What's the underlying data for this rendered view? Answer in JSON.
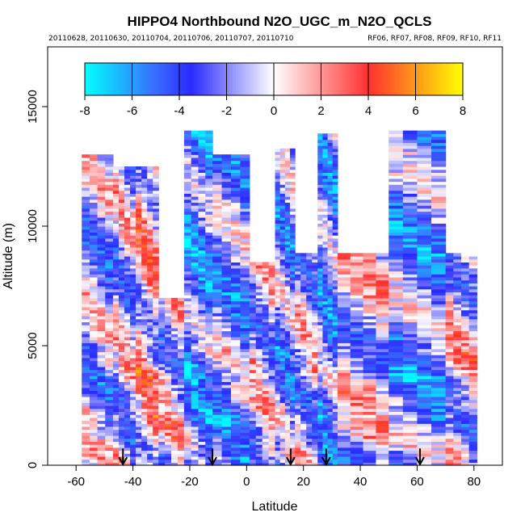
{
  "chart_data": {
    "type": "heatmap",
    "title": "HIPPO4 Northbound N2O_UGC_m_N2O_QCLS",
    "subtitle_left": "20110628, 20110630, 20110704, 20110706, 20110707, 20110710",
    "subtitle_right": "RF06, RF07, RF08, RF09, RF10, RF11",
    "xlabel": "Latitude",
    "ylabel": "Altitude (m)",
    "xlim": [
      -70,
      90
    ],
    "ylim": [
      0,
      17500
    ],
    "x_ticks": [
      -60,
      -40,
      -20,
      0,
      20,
      40,
      60,
      80
    ],
    "y_ticks": [
      0,
      5000,
      10000,
      15000
    ],
    "colorbar": {
      "min": -8,
      "max": 8,
      "ticks": [
        -8,
        -6,
        -4,
        -2,
        0,
        2,
        4,
        6,
        8
      ],
      "colors": [
        "#00ffff",
        "#3a6cff",
        "#2a2aff",
        "#ffffff",
        "#ff3030",
        "#ffff00"
      ],
      "placement": "top-inside"
    },
    "profile_latitudes": [
      -43.5,
      -12,
      15.5,
      28,
      61
    ],
    "columns": [
      {
        "lat0": -58,
        "lat1": -47,
        "alt_top": 13000,
        "mean": -1.5
      },
      {
        "lat0": -47,
        "lat1": -39,
        "alt_top": 12500,
        "mean": -1.0
      },
      {
        "lat0": -39,
        "lat1": -31,
        "alt_top": 12500,
        "mean": 0.8
      },
      {
        "lat0": -31,
        "lat1": -22,
        "alt_top": 7000,
        "mean": -0.5
      },
      {
        "lat0": -22,
        "lat1": -12,
        "alt_top": 13900,
        "mean": -3.5
      },
      {
        "lat0": -12,
        "lat1": 1,
        "alt_top": 12900,
        "mean": -2.5
      },
      {
        "lat0": 1,
        "lat1": 10,
        "alt_top": 8500,
        "mean": -1.0
      },
      {
        "lat0": 10,
        "lat1": 17,
        "alt_top": 13200,
        "mean": -2.5
      },
      {
        "lat0": 17,
        "lat1": 25,
        "alt_top": 8800,
        "mean": -1.0
      },
      {
        "lat0": 25,
        "lat1": 32,
        "alt_top": 13800,
        "mean": -3.0
      },
      {
        "lat0": 32,
        "lat1": 50,
        "alt_top": 8800,
        "mean": -0.5
      },
      {
        "lat0": 50,
        "lat1": 70,
        "alt_top": 13900,
        "mean": -2.8
      },
      {
        "lat0": 70,
        "lat1": 81,
        "alt_top": 8800,
        "mean": -0.5
      }
    ]
  }
}
